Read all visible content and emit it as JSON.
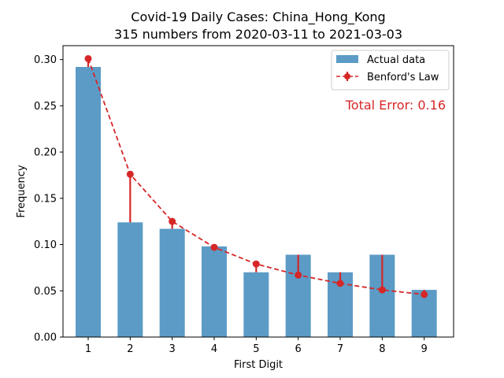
{
  "chart_data": {
    "type": "bar",
    "title": "Covid-19 Daily Cases: China_Hong_Kong",
    "subtitle": "315 numbers from 2020-03-11 to 2021-03-03",
    "xlabel": "First Digit",
    "ylabel": "Frequency",
    "categories": [
      "1",
      "2",
      "3",
      "4",
      "5",
      "6",
      "7",
      "8",
      "9"
    ],
    "x": [
      1,
      2,
      3,
      4,
      5,
      6,
      7,
      8,
      9
    ],
    "xlim": [
      0.4,
      9.7
    ],
    "ylim": [
      0.0,
      0.3
    ],
    "yticks": [
      "0.00",
      "0.05",
      "0.10",
      "0.15",
      "0.20",
      "0.25",
      "0.30"
    ],
    "grid": false,
    "legend": {
      "placement": "top-right",
      "entries": [
        "Actual data",
        "Benford's Law"
      ]
    },
    "annotation": {
      "text": "Total Error: 0.16",
      "color": "#d62728"
    },
    "series": [
      {
        "name": "Actual data",
        "kind": "bar",
        "color": "#5b9bc6",
        "values": [
          0.292,
          0.124,
          0.117,
          0.098,
          0.07,
          0.089,
          0.07,
          0.089,
          0.051
        ]
      },
      {
        "name": "Benford's Law",
        "kind": "line-errorbar",
        "color": "#d62728",
        "style": "dashed",
        "values": [
          0.301,
          0.176,
          0.125,
          0.097,
          0.079,
          0.067,
          0.058,
          0.051,
          0.046
        ]
      }
    ]
  }
}
